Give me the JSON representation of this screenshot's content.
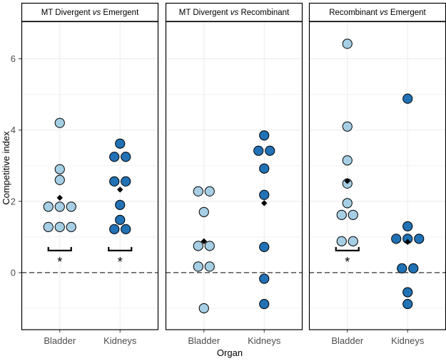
{
  "chart_data": {
    "type": "scatter",
    "subtype": "faceted dot plot",
    "xlabel": "Organ",
    "ylabel": "Competitive index",
    "ylim": [
      -1.6,
      7.05
    ],
    "yticks": [
      0,
      2,
      4,
      6
    ],
    "reference_line": 0,
    "categories": [
      "Bladder",
      "Kidneys"
    ],
    "colors": {
      "Bladder": "#a6cfe5",
      "Kidneys": "#2171b5",
      "mean": "#000000",
      "outline": "#000000"
    },
    "panels": [
      {
        "title_parts": [
          "MT Divergent ",
          "vs",
          " Emergent"
        ],
        "series": [
          {
            "name": "Bladder",
            "values": [
              4.2,
              2.9,
              2.6,
              1.85,
              1.85,
              1.85,
              1.28,
              1.28,
              1.28
            ],
            "mean": 2.1,
            "significance": "*"
          },
          {
            "name": "Kidneys",
            "values": [
              3.62,
              3.25,
              3.25,
              2.56,
              2.56,
              1.9,
              1.48,
              1.22,
              1.22
            ],
            "mean": 2.33,
            "significance": "*"
          }
        ]
      },
      {
        "title_parts": [
          "MT Divergent ",
          "vs",
          " Recombinant"
        ],
        "series": [
          {
            "name": "Bladder",
            "values": [
              2.28,
              2.28,
              1.7,
              0.75,
              0.75,
              0.17,
              0.17,
              -1.0
            ],
            "mean": 0.88,
            "significance": ""
          },
          {
            "name": "Kidneys",
            "values": [
              3.85,
              3.42,
              3.42,
              2.92,
              2.18,
              0.72,
              -0.17,
              -0.88
            ],
            "mean": 1.95,
            "significance": ""
          }
        ]
      },
      {
        "title_parts": [
          "Recombinant ",
          "vs",
          " Emergent"
        ],
        "series": [
          {
            "name": "Bladder",
            "values": [
              6.42,
              4.1,
              3.15,
              2.5,
              1.95,
              1.62,
              1.62,
              0.88,
              0.88
            ],
            "mean": 2.57,
            "significance": "*"
          },
          {
            "name": "Kidneys",
            "values": [
              4.88,
              1.3,
              0.95,
              0.95,
              0.95,
              0.12,
              0.12,
              -0.55,
              -0.88
            ],
            "mean": 0.86,
            "significance": ""
          }
        ]
      }
    ]
  }
}
